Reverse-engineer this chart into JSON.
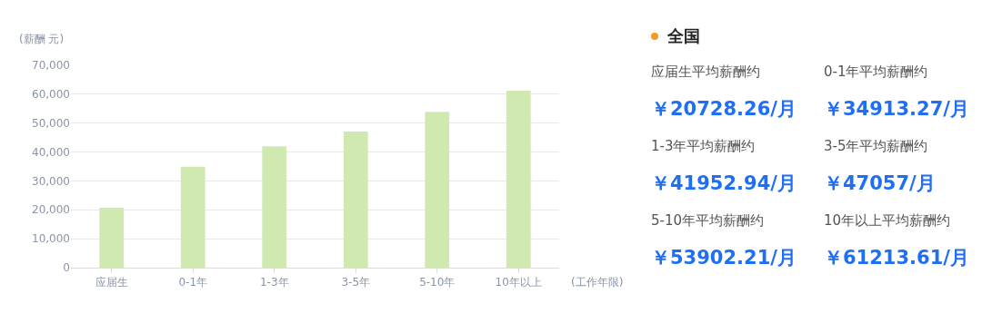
{
  "chart_data": [
    {
      "type": "bar",
      "ylabel": "(薪酬 元)",
      "xlabel": "(工作年限)",
      "categories": [
        "应届生",
        "0-1年",
        "1-3年",
        "3-5年",
        "5-10年",
        "10年以上"
      ],
      "values": [
        20728.26,
        34913.27,
        41952.94,
        47057,
        53902.21,
        61213.61
      ],
      "color": "#cfe9b0",
      "ylim": [
        0,
        70000
      ],
      "yticks": [
        {
          "value": 0,
          "label": "0"
        },
        {
          "value": 10000,
          "label": "10,000"
        },
        {
          "value": 20000,
          "label": "20,000"
        },
        {
          "value": 30000,
          "label": "30,000"
        },
        {
          "value": 40000,
          "label": "40,000"
        },
        {
          "value": 50000,
          "label": "50,000"
        },
        {
          "value": 60000,
          "label": "60,000"
        },
        {
          "value": 70000,
          "label": "70,000"
        }
      ],
      "grid": "y"
    },
    {
      "type": "other",
      "title": "全国",
      "annotations": [
        "应届生平均薪酬约",
        "0-1年平均薪酬约",
        "￥20728.26/月",
        "￥34913.27/月",
        "1-3年平均薪酬约",
        "3-5年平均薪酬约",
        "￥41952.94/月",
        "￥47057/月",
        "5-10年平均薪酬约",
        "10年以上平均薪酬约",
        "￥53902.21/月",
        "￥61213.61/月"
      ]
    }
  ]
}
